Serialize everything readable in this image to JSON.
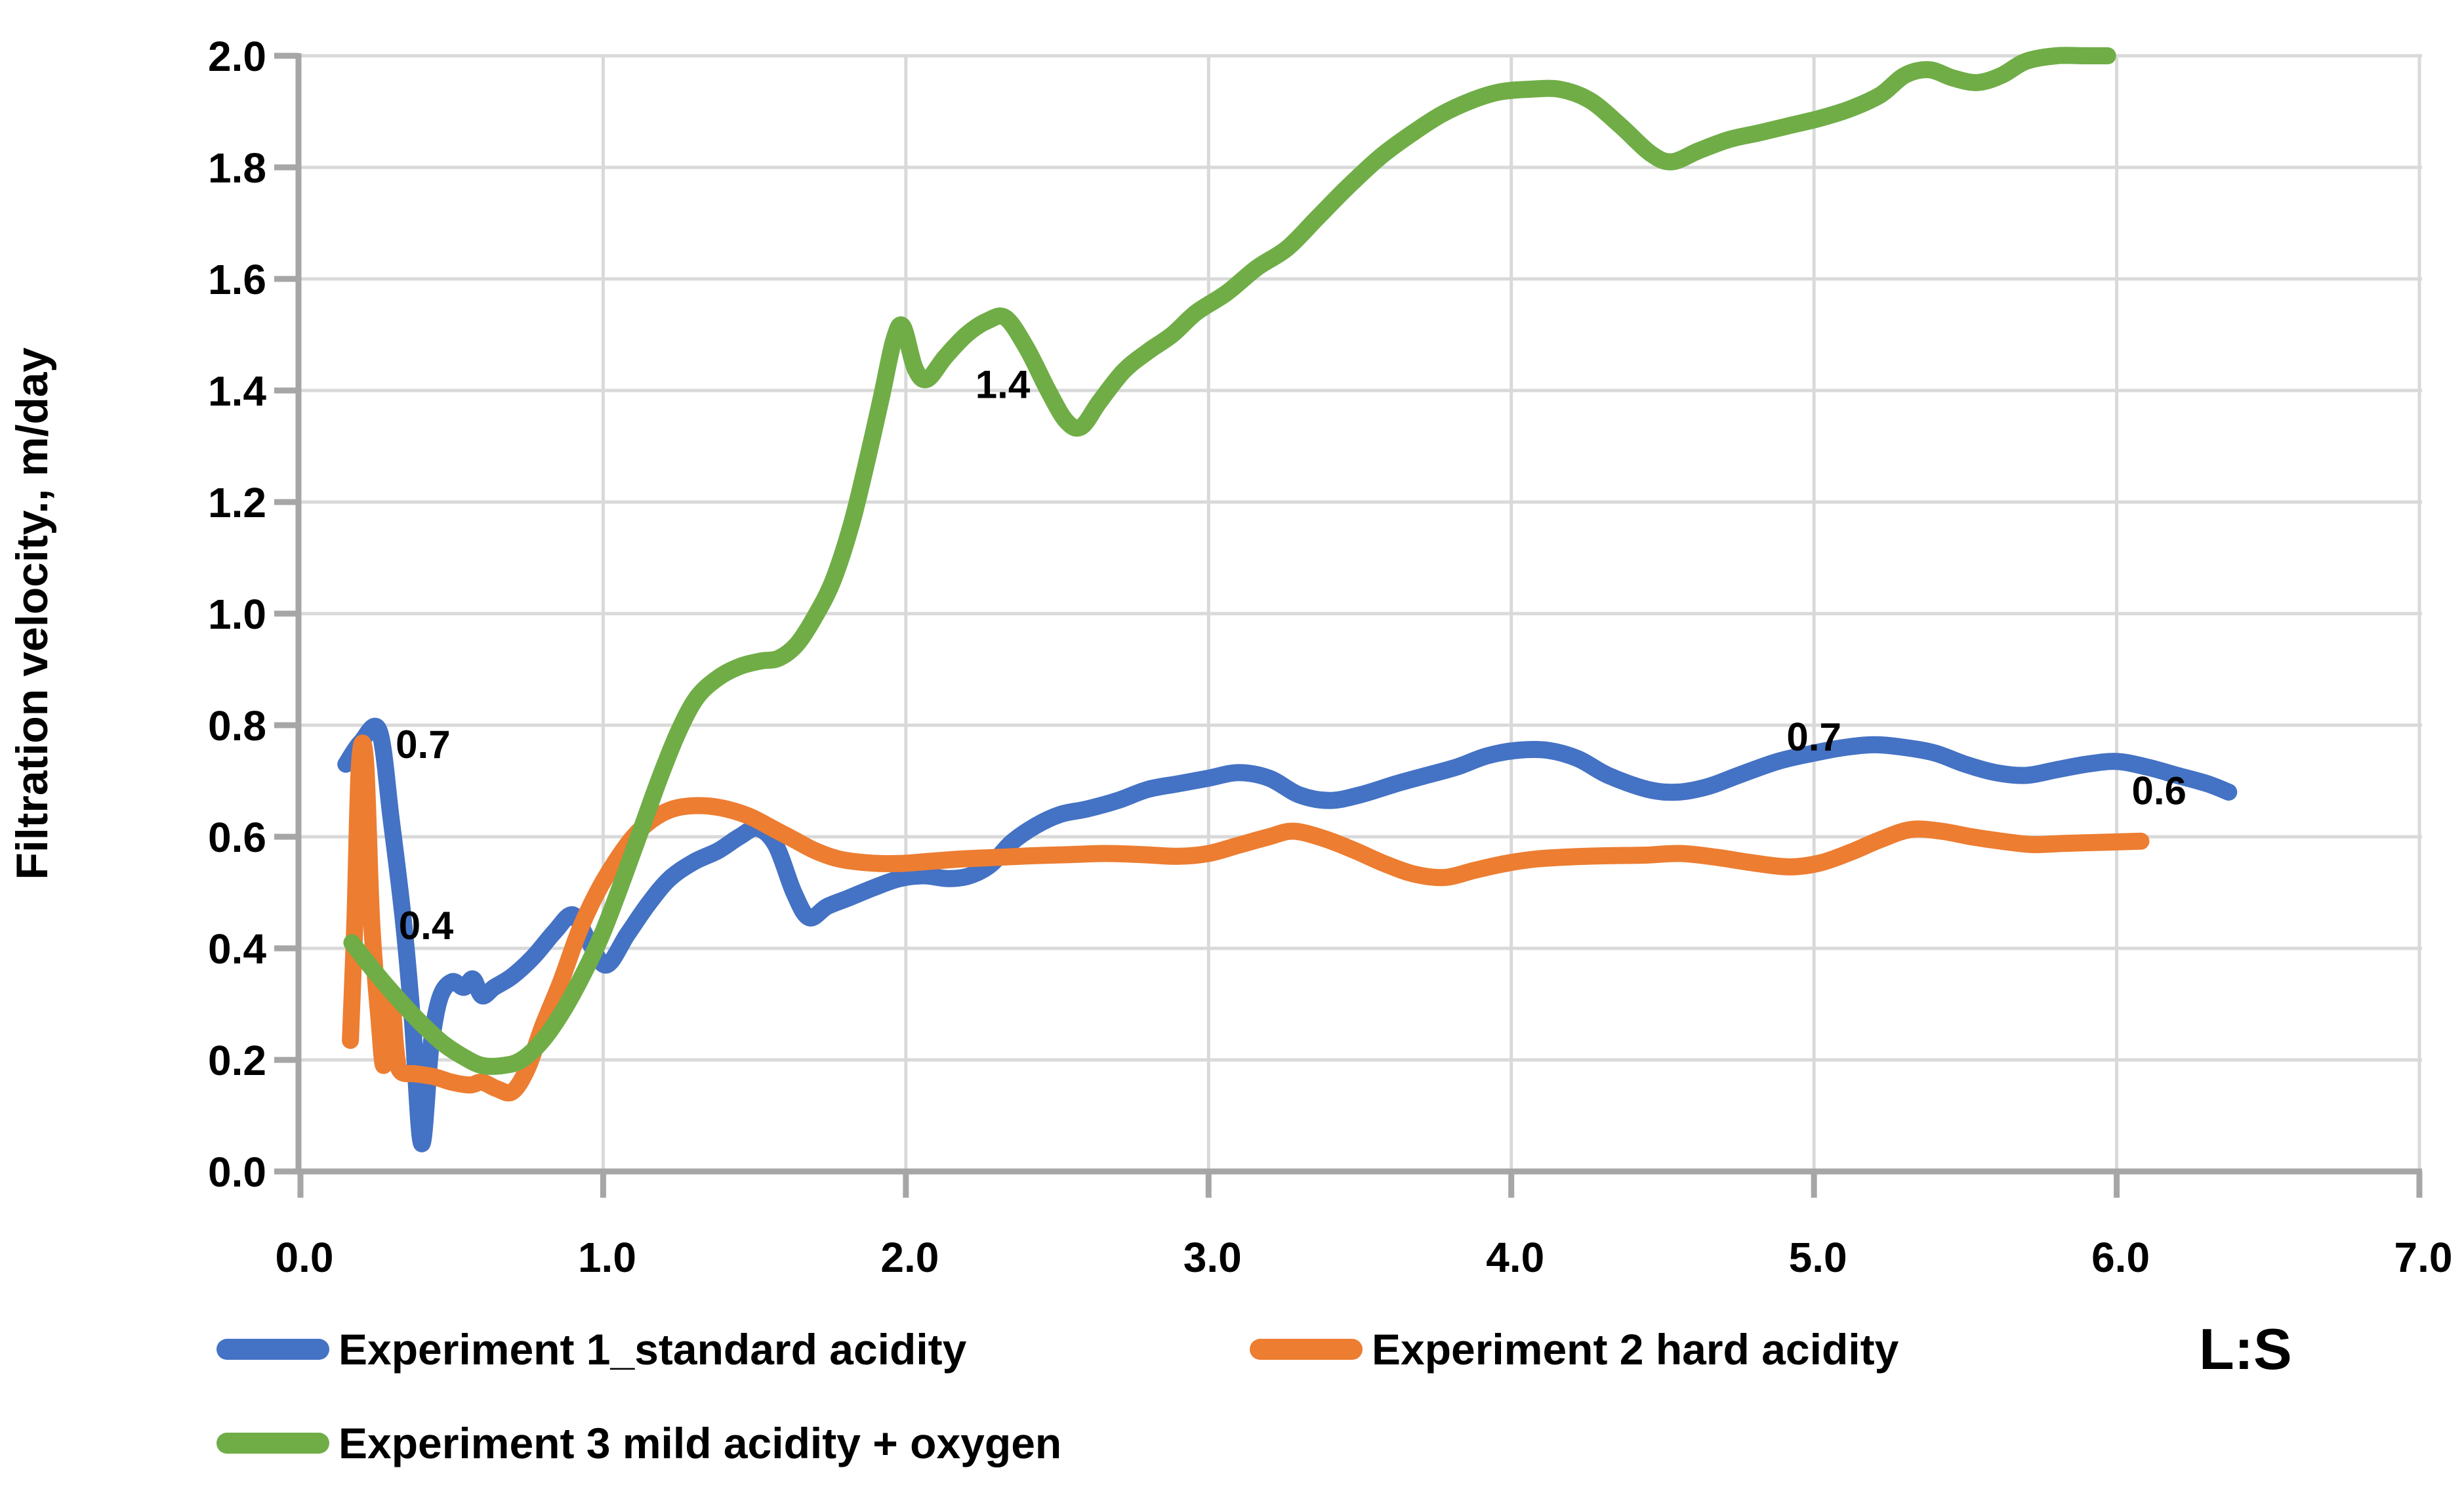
{
  "chart_data": {
    "type": "line",
    "title": "",
    "xlabel": "L:S",
    "ylabel": "Filtration velocity., m/day",
    "xlim": [
      0.0,
      7.0
    ],
    "ylim": [
      0.0,
      2.0
    ],
    "x_ticks": [
      "0.0",
      "1.0",
      "2.0",
      "3.0",
      "4.0",
      "5.0",
      "6.0",
      "7.0"
    ],
    "y_ticks": [
      "0.0",
      "0.2",
      "0.4",
      "0.6",
      "0.8",
      "1.0",
      "1.2",
      "1.4",
      "1.6",
      "1.8",
      "2.0"
    ],
    "grid": true,
    "legend_position": "bottom",
    "series": [
      {
        "name": "Experiment 1_standard acidity",
        "color": "#4472C4",
        "points": [
          [
            0.15,
            0.73
          ],
          [
            0.2,
            0.77
          ],
          [
            0.26,
            0.79
          ],
          [
            0.3,
            0.63
          ],
          [
            0.34,
            0.45
          ],
          [
            0.37,
            0.27
          ],
          [
            0.4,
            0.05
          ],
          [
            0.43,
            0.22
          ],
          [
            0.46,
            0.31
          ],
          [
            0.5,
            0.34
          ],
          [
            0.54,
            0.33
          ],
          [
            0.57,
            0.345
          ],
          [
            0.6,
            0.315
          ],
          [
            0.64,
            0.33
          ],
          [
            0.7,
            0.35
          ],
          [
            0.77,
            0.385
          ],
          [
            0.84,
            0.43
          ],
          [
            0.9,
            0.46
          ],
          [
            0.95,
            0.415
          ],
          [
            1.01,
            0.37
          ],
          [
            1.08,
            0.425
          ],
          [
            1.15,
            0.48
          ],
          [
            1.22,
            0.525
          ],
          [
            1.3,
            0.555
          ],
          [
            1.38,
            0.575
          ],
          [
            1.45,
            0.6
          ],
          [
            1.51,
            0.615
          ],
          [
            1.57,
            0.585
          ],
          [
            1.63,
            0.5
          ],
          [
            1.68,
            0.455
          ],
          [
            1.74,
            0.475
          ],
          [
            1.81,
            0.49
          ],
          [
            1.9,
            0.51
          ],
          [
            1.98,
            0.525
          ],
          [
            2.06,
            0.53
          ],
          [
            2.14,
            0.525
          ],
          [
            2.21,
            0.53
          ],
          [
            2.28,
            0.55
          ],
          [
            2.35,
            0.59
          ],
          [
            2.43,
            0.62
          ],
          [
            2.51,
            0.64
          ],
          [
            2.6,
            0.65
          ],
          [
            2.7,
            0.665
          ],
          [
            2.8,
            0.685
          ],
          [
            2.9,
            0.695
          ],
          [
            3.0,
            0.705
          ],
          [
            3.1,
            0.715
          ],
          [
            3.2,
            0.705
          ],
          [
            3.3,
            0.675
          ],
          [
            3.4,
            0.665
          ],
          [
            3.5,
            0.675
          ],
          [
            3.62,
            0.695
          ],
          [
            3.72,
            0.71
          ],
          [
            3.82,
            0.725
          ],
          [
            3.92,
            0.745
          ],
          [
            4.02,
            0.755
          ],
          [
            4.12,
            0.755
          ],
          [
            4.22,
            0.74
          ],
          [
            4.32,
            0.71
          ],
          [
            4.45,
            0.685
          ],
          [
            4.55,
            0.68
          ],
          [
            4.65,
            0.69
          ],
          [
            4.75,
            0.71
          ],
          [
            4.88,
            0.735
          ],
          [
            5.0,
            0.75
          ],
          [
            5.1,
            0.76
          ],
          [
            5.2,
            0.765
          ],
          [
            5.3,
            0.76
          ],
          [
            5.4,
            0.75
          ],
          [
            5.5,
            0.73
          ],
          [
            5.6,
            0.715
          ],
          [
            5.7,
            0.71
          ],
          [
            5.8,
            0.72
          ],
          [
            5.9,
            0.73
          ],
          [
            6.0,
            0.735
          ],
          [
            6.1,
            0.725
          ],
          [
            6.2,
            0.71
          ],
          [
            6.3,
            0.695
          ],
          [
            6.37,
            0.68
          ]
        ]
      },
      {
        "name": "Experiment 2 hard acidity",
        "color": "#ED7D31",
        "points": [
          [
            0.165,
            0.235
          ],
          [
            0.18,
            0.45
          ],
          [
            0.195,
            0.73
          ],
          [
            0.215,
            0.735
          ],
          [
            0.235,
            0.45
          ],
          [
            0.26,
            0.27
          ],
          [
            0.275,
            0.19
          ],
          [
            0.29,
            0.27
          ],
          [
            0.3,
            0.32
          ],
          [
            0.315,
            0.22
          ],
          [
            0.33,
            0.18
          ],
          [
            0.38,
            0.175
          ],
          [
            0.44,
            0.17
          ],
          [
            0.5,
            0.16
          ],
          [
            0.56,
            0.155
          ],
          [
            0.6,
            0.16
          ],
          [
            0.65,
            0.148
          ],
          [
            0.7,
            0.143
          ],
          [
            0.75,
            0.185
          ],
          [
            0.8,
            0.26
          ],
          [
            0.86,
            0.34
          ],
          [
            0.92,
            0.43
          ],
          [
            0.98,
            0.5
          ],
          [
            1.04,
            0.555
          ],
          [
            1.1,
            0.6
          ],
          [
            1.16,
            0.63
          ],
          [
            1.22,
            0.648
          ],
          [
            1.28,
            0.655
          ],
          [
            1.35,
            0.655
          ],
          [
            1.42,
            0.648
          ],
          [
            1.49,
            0.635
          ],
          [
            1.56,
            0.615
          ],
          [
            1.63,
            0.595
          ],
          [
            1.7,
            0.575
          ],
          [
            1.78,
            0.56
          ],
          [
            1.88,
            0.553
          ],
          [
            1.98,
            0.552
          ],
          [
            2.08,
            0.556
          ],
          [
            2.18,
            0.56
          ],
          [
            2.3,
            0.563
          ],
          [
            2.42,
            0.566
          ],
          [
            2.54,
            0.568
          ],
          [
            2.66,
            0.57
          ],
          [
            2.78,
            0.568
          ],
          [
            2.9,
            0.565
          ],
          [
            3.0,
            0.57
          ],
          [
            3.1,
            0.585
          ],
          [
            3.2,
            0.6
          ],
          [
            3.28,
            0.61
          ],
          [
            3.38,
            0.597
          ],
          [
            3.48,
            0.576
          ],
          [
            3.58,
            0.552
          ],
          [
            3.68,
            0.533
          ],
          [
            3.78,
            0.527
          ],
          [
            3.88,
            0.54
          ],
          [
            3.98,
            0.552
          ],
          [
            4.08,
            0.56
          ],
          [
            4.2,
            0.564
          ],
          [
            4.32,
            0.566
          ],
          [
            4.44,
            0.567
          ],
          [
            4.56,
            0.57
          ],
          [
            4.68,
            0.563
          ],
          [
            4.8,
            0.553
          ],
          [
            4.92,
            0.546
          ],
          [
            5.02,
            0.553
          ],
          [
            5.12,
            0.572
          ],
          [
            5.22,
            0.595
          ],
          [
            5.32,
            0.613
          ],
          [
            5.42,
            0.61
          ],
          [
            5.52,
            0.6
          ],
          [
            5.62,
            0.592
          ],
          [
            5.72,
            0.586
          ],
          [
            5.82,
            0.588
          ],
          [
            5.95,
            0.59
          ],
          [
            6.08,
            0.592
          ]
        ]
      },
      {
        "name": "Experiment 3 mild acidity + oxygen",
        "color": "#70AD47",
        "points": [
          [
            0.17,
            0.41
          ],
          [
            0.25,
            0.355
          ],
          [
            0.33,
            0.305
          ],
          [
            0.4,
            0.265
          ],
          [
            0.47,
            0.23
          ],
          [
            0.54,
            0.205
          ],
          [
            0.6,
            0.19
          ],
          [
            0.67,
            0.19
          ],
          [
            0.73,
            0.2
          ],
          [
            0.8,
            0.235
          ],
          [
            0.87,
            0.29
          ],
          [
            0.94,
            0.36
          ],
          [
            1.0,
            0.43
          ],
          [
            1.07,
            0.53
          ],
          [
            1.13,
            0.62
          ],
          [
            1.19,
            0.71
          ],
          [
            1.25,
            0.79
          ],
          [
            1.31,
            0.85
          ],
          [
            1.38,
            0.885
          ],
          [
            1.45,
            0.905
          ],
          [
            1.52,
            0.915
          ],
          [
            1.58,
            0.92
          ],
          [
            1.64,
            0.945
          ],
          [
            1.7,
            0.995
          ],
          [
            1.76,
            1.06
          ],
          [
            1.82,
            1.16
          ],
          [
            1.87,
            1.27
          ],
          [
            1.92,
            1.39
          ],
          [
            1.96,
            1.49
          ],
          [
            1.99,
            1.515
          ],
          [
            2.03,
            1.44
          ],
          [
            2.07,
            1.42
          ],
          [
            2.13,
            1.46
          ],
          [
            2.2,
            1.5
          ],
          [
            2.27,
            1.525
          ],
          [
            2.33,
            1.53
          ],
          [
            2.4,
            1.475
          ],
          [
            2.47,
            1.4
          ],
          [
            2.53,
            1.345
          ],
          [
            2.58,
            1.335
          ],
          [
            2.64,
            1.38
          ],
          [
            2.72,
            1.435
          ],
          [
            2.8,
            1.47
          ],
          [
            2.88,
            1.5
          ],
          [
            2.96,
            1.54
          ],
          [
            3.06,
            1.575
          ],
          [
            3.16,
            1.62
          ],
          [
            3.26,
            1.655
          ],
          [
            3.36,
            1.71
          ],
          [
            3.46,
            1.765
          ],
          [
            3.57,
            1.82
          ],
          [
            3.67,
            1.86
          ],
          [
            3.77,
            1.895
          ],
          [
            3.87,
            1.92
          ],
          [
            3.96,
            1.935
          ],
          [
            4.06,
            1.94
          ],
          [
            4.16,
            1.94
          ],
          [
            4.26,
            1.92
          ],
          [
            4.36,
            1.875
          ],
          [
            4.46,
            1.825
          ],
          [
            4.53,
            1.81
          ],
          [
            4.62,
            1.83
          ],
          [
            4.72,
            1.85
          ],
          [
            4.82,
            1.862
          ],
          [
            4.92,
            1.875
          ],
          [
            5.02,
            1.888
          ],
          [
            5.12,
            1.905
          ],
          [
            5.22,
            1.93
          ],
          [
            5.3,
            1.965
          ],
          [
            5.38,
            1.975
          ],
          [
            5.46,
            1.96
          ],
          [
            5.54,
            1.952
          ],
          [
            5.62,
            1.965
          ],
          [
            5.7,
            1.99
          ],
          [
            5.8,
            2.0
          ],
          [
            5.9,
            2.0
          ],
          [
            5.97,
            2.0
          ]
        ]
      }
    ],
    "point_labels": [
      {
        "text": "0.7",
        "x": 0.405,
        "y": 0.765
      },
      {
        "text": "0.4",
        "x": 0.415,
        "y": 0.44
      },
      {
        "text": "1.4",
        "x": 2.32,
        "y": 1.41
      },
      {
        "text": "0.7",
        "x": 5.0,
        "y": 0.778
      },
      {
        "text": "0.6",
        "x": 6.14,
        "y": 0.682
      }
    ]
  },
  "colors": {
    "gridline": "#D9D9D9",
    "axis": "#A6A6A6",
    "text": "#000000",
    "background": "#FFFFFF"
  }
}
